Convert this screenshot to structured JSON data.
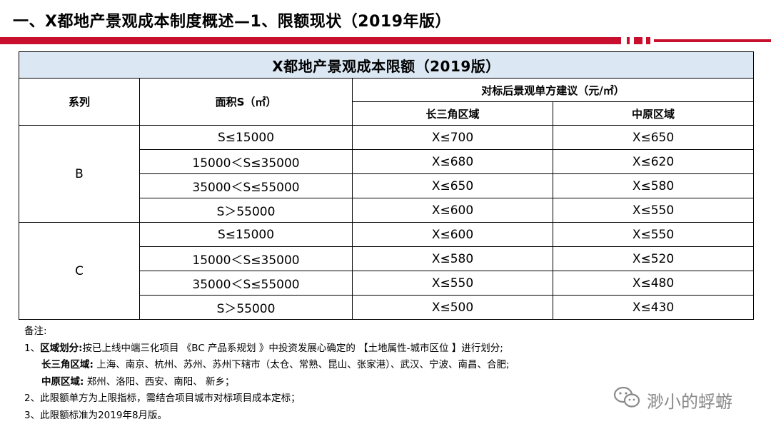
{
  "slide_title": "一、X都地产景观成本制度概述—1、限额现状（2019年版）",
  "table": {
    "caption": "X都地产景观成本限额（2019版）",
    "headers": {
      "series": "系列",
      "area": "面积S（㎡）",
      "suggest": "对标后景观单方建议（元/㎡）",
      "region1": "长三角区域",
      "region2": "中原区域"
    },
    "groups": [
      {
        "series": "B",
        "rows": [
          {
            "area": "S≤15000",
            "yrd": "X≤700",
            "cp": "X≤650"
          },
          {
            "area": "15000＜S≤35000",
            "yrd": "X≤680",
            "cp": "X≤620"
          },
          {
            "area": "35000＜S≤55000",
            "yrd": "X≤650",
            "cp": "X≤580"
          },
          {
            "area": "S＞55000",
            "yrd": "X≤600",
            "cp": "X≤550"
          }
        ]
      },
      {
        "series": "C",
        "rows": [
          {
            "area": "S≤15000",
            "yrd": "X≤600",
            "cp": "X≤550"
          },
          {
            "area": "15000＜S≤35000",
            "yrd": "X≤580",
            "cp": "X≤520"
          },
          {
            "area": "35000＜S≤55000",
            "yrd": "X≤550",
            "cp": "X≤480"
          },
          {
            "area": "S＞55000",
            "yrd": "X≤500",
            "cp": "X≤430"
          }
        ]
      }
    ]
  },
  "notes": {
    "heading": "备注:",
    "n1_prefix": "1、",
    "n1_label": "区域划分:",
    "n1_text": "按已上线中端三化项目 《BC 产品系规划 》中投资发展心确定的 【土地属性-城市区位 】进行划分;",
    "yrd_label": "长三角区域:",
    "yrd_text": "上海、南京、杭州、苏州、苏州下辖市（太仓、常熟、昆山、张家港）、武汉、宁波、南昌、合肥;",
    "cp_label": "中原区域:",
    "cp_text": "郑州、洛阳、西安、南阳、 新乡；",
    "n2": "2、此限额单方为上限指标，需结合项目城市对标项目成本定标；",
    "n3": "3、此限额标准为2019年8月版。"
  },
  "watermark": {
    "icon": "wechat-icon",
    "text": "渺小的蜉蝣"
  },
  "colors": {
    "accent": "#c8102e",
    "caption_bg": "#dbe8f4"
  }
}
